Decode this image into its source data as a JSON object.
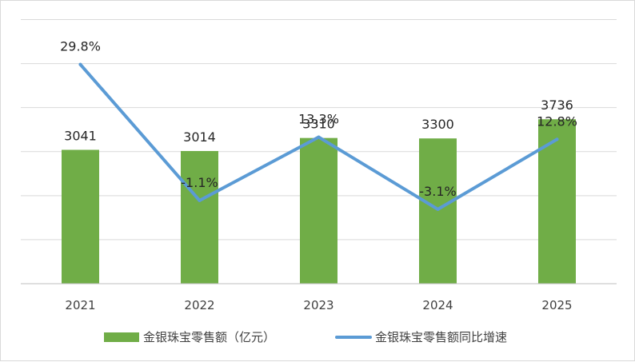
{
  "chart_data": {
    "type": "bar",
    "categories": [
      "2021",
      "2022",
      "2023",
      "2024",
      "2025"
    ],
    "series": [
      {
        "name": "金银珠宝零售额（亿元）",
        "type": "bar",
        "axis": "left",
        "values": [
          3041,
          3014,
          3310,
          3300,
          3736
        ],
        "labels": [
          "3041",
          "3014",
          "3310",
          "3300",
          "3736"
        ],
        "color": "#70ad47"
      },
      {
        "name": "金银珠宝零售额同比增速",
        "type": "line",
        "axis": "right",
        "values": [
          29.8,
          -1.1,
          13.3,
          -3.1,
          12.8
        ],
        "labels": [
          "29.8%",
          "-1.1%",
          "13.3%",
          "-3.1%",
          "12.8%"
        ],
        "color": "#5b9bd5"
      }
    ],
    "title": "",
    "xlabel": "",
    "ylabel": "",
    "ylim": [
      0,
      6000
    ],
    "ylim_right": [
      -20,
      40
    ],
    "grid": true,
    "legend": "bottom",
    "colors": {
      "gridline": "#d9d9d9",
      "axis": "#bfbfbf"
    }
  }
}
